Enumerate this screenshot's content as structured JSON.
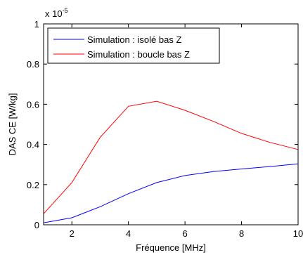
{
  "chart_data": {
    "type": "line",
    "title": "",
    "xlabel": "Fréquence [MHz]",
    "ylabel": "DAS CE [W/kg]",
    "y_multiplier_label": "x 10",
    "y_multiplier_exponent": "-5",
    "xlim": [
      1,
      10
    ],
    "ylim": [
      0,
      1
    ],
    "xticks": [
      2,
      4,
      6,
      8,
      10
    ],
    "yticks": [
      0,
      0.2,
      0.4,
      0.6,
      0.8,
      1
    ],
    "xtick_labels": [
      "2",
      "4",
      "6",
      "8",
      "10"
    ],
    "ytick_labels": [
      "0",
      "0.2",
      "0.4",
      "0.6",
      "0.8",
      "1"
    ],
    "grid": false,
    "legend_position": "top-left",
    "series": [
      {
        "name": "Simulation : isolé bas Z",
        "color": "#0000ff",
        "x": [
          1,
          2,
          3,
          4,
          5,
          6,
          7,
          8,
          9,
          10
        ],
        "y": [
          0.01,
          0.035,
          0.09,
          0.155,
          0.21,
          0.245,
          0.265,
          0.278,
          0.29,
          0.303
        ]
      },
      {
        "name": "Simulation : boucle bas Z",
        "color": "#ff0000",
        "x": [
          1,
          2,
          3,
          4,
          5,
          6,
          7,
          8,
          9,
          10
        ],
        "y": [
          0.055,
          0.21,
          0.435,
          0.59,
          0.615,
          0.57,
          0.515,
          0.455,
          0.41,
          0.375
        ]
      }
    ]
  }
}
